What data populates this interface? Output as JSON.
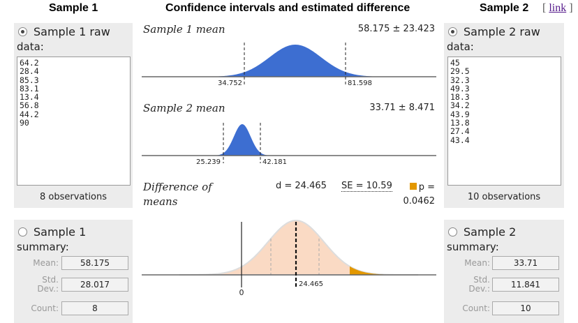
{
  "headers": {
    "sample1": "Sample 1",
    "middle": "Confidence intervals and estimated difference",
    "sample2": "Sample 2",
    "link_prefix": "[",
    "link_label": "link",
    "link_suffix": "]"
  },
  "sample1": {
    "raw_label": "Sample 1 raw",
    "data_label": "data:",
    "raw_data": "64.2\n28.4\n85.3\n83.1\n13.4\n56.8\n44.2\n90",
    "observations": "8 observations",
    "summary_label": "Sample 1",
    "summary_sub": "summary:",
    "mean_label": "Mean:",
    "mean": "58.175",
    "sd_label": "Std. Dev.:",
    "sd": "28.017",
    "count_label": "Count:",
    "count": "8",
    "raw_selected": true,
    "summary_selected": false
  },
  "sample2": {
    "raw_label": "Sample 2 raw",
    "data_label": "data:",
    "raw_data": "45\n29.5\n32.3\n49.3\n18.3\n34.2\n43.9\n13.8\n27.4\n43.4",
    "observations": "10 observations",
    "summary_label": "Sample 2",
    "summary_sub": "summary:",
    "mean_label": "Mean:",
    "mean": "33.71",
    "sd_label": "Std. Dev.:",
    "sd": "11.841",
    "count_label": "Count:",
    "count": "10",
    "raw_selected": true,
    "summary_selected": false
  },
  "plots": {
    "mean1": {
      "title": "Sample 1 mean",
      "value": "58.175 ± 23.423",
      "ci_low": "34.752",
      "ci_high": "81.598"
    },
    "mean2": {
      "title": "Sample 2 mean",
      "value": "33.71 ± 8.471",
      "ci_low": "25.239",
      "ci_high": "42.181"
    },
    "diff": {
      "title_line1": "Difference of",
      "title_line2": "means",
      "d_text": "d = 24.465",
      "se_text": "SE = 10.59",
      "p_label": "p =",
      "p_value": "0.0462",
      "zero_label": "0",
      "d_label": "24.465"
    }
  },
  "colors": {
    "mean_fill": "#3d6ed1",
    "diff_fill": "#fadac4",
    "tail_fill": "#e39800",
    "panel_bg": "#ececec"
  }
}
